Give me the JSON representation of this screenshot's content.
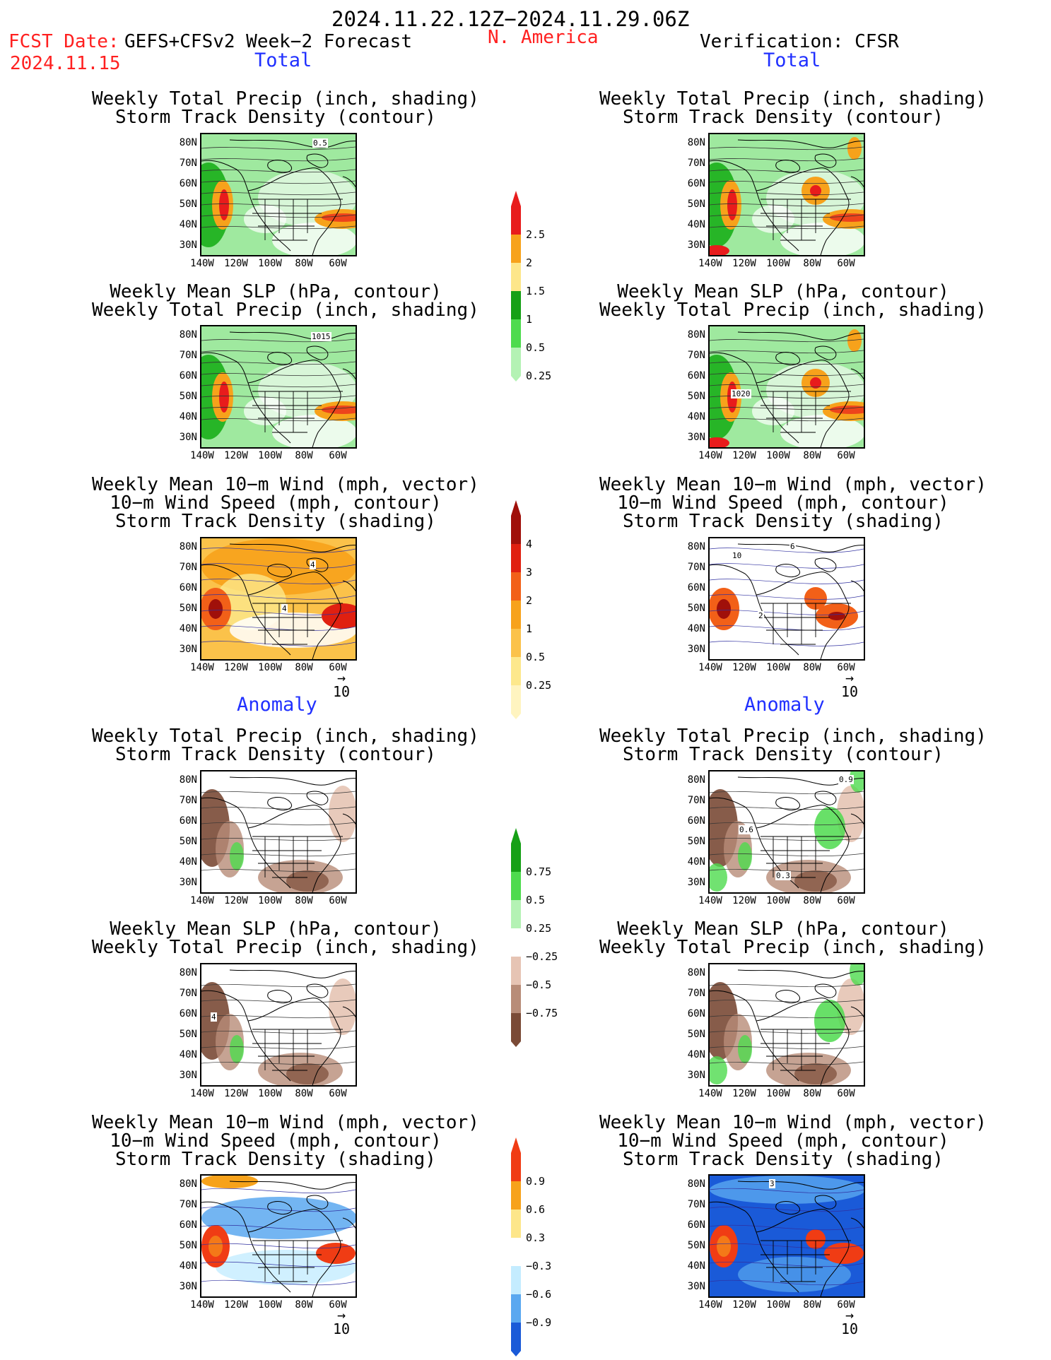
{
  "header": {
    "period": "2024.11.22.12Z−2024.11.29.06Z",
    "fcst_label": "FCST Date:",
    "fcst_model": "GEFS+CFSv2 Week−2 Forecast",
    "fcst_date": "2024.11.15",
    "region": "N. America",
    "verification": "Verification: CFSR"
  },
  "sections": {
    "total_left": "Total",
    "total_right": "Total",
    "anom_left": "Anomaly",
    "anom_right": "Anomaly"
  },
  "titles": {
    "precip_storm": [
      "Weekly Total Precip (inch, shading)",
      "Storm Track Density (contour)"
    ],
    "slp_precip": [
      "Weekly Mean SLP (hPa, contour)",
      "Weekly Total Precip (inch, shading)"
    ],
    "wind_storm": [
      "Weekly Mean 10−m Wind (mph, vector)",
      "10−m Wind Speed (mph, contour)",
      "Storm Track Density (shading)"
    ]
  },
  "axes": {
    "lat": [
      "80N",
      "70N",
      "60N",
      "50N",
      "40N",
      "30N"
    ],
    "lon": [
      "140W",
      "120W",
      "100W",
      "80W",
      "60W"
    ]
  },
  "contour_labels": {
    "p1_left": "0.5",
    "p2_left": "1015",
    "p2_right": "1020",
    "p3_left_a": "4",
    "p3_left_b": "4",
    "p3_right_a": "10",
    "p3_right_b": "6",
    "p3_right_c": "2",
    "p4_right_a": "0.9",
    "p4_right_b": "0.6",
    "p4_right_c": "0.3",
    "p5_left": "4",
    "p6_right": "3"
  },
  "vector_ref": "10",
  "colorbars": [
    {
      "name": "precip-total",
      "labels": [
        "2.5",
        "2",
        "1.5",
        "1",
        "0.5",
        "0.25"
      ],
      "colors": [
        "#e81c1c",
        "#f7a21b",
        "#fde68a",
        "#16a016",
        "#4edb4e",
        "#b4f2b4"
      ]
    },
    {
      "name": "storm-total",
      "labels": [
        "4",
        "3",
        "2",
        "1",
        "0.5",
        "0.25"
      ],
      "colors": [
        "#a0100a",
        "#e02010",
        "#f26018",
        "#f7a21b",
        "#fbc24a",
        "#fde88c",
        "#fff4c0"
      ]
    },
    {
      "name": "precip-anom",
      "labels": [
        "0.75",
        "0.5",
        "0.25",
        "−0.25",
        "−0.5",
        "−0.75"
      ],
      "colors": [
        "#16a016",
        "#4edb4e",
        "#b4f2b4",
        "#ffffff",
        "#e6c4b4",
        "#b88c78",
        "#7a4a36"
      ]
    },
    {
      "name": "storm-anom",
      "labels": [
        "0.9",
        "0.6",
        "0.3",
        "−0.3",
        "−0.6",
        "−0.9"
      ],
      "colors": [
        "#f03c14",
        "#f7a21b",
        "#fde68a",
        "#ffffff",
        "#c4ecff",
        "#5aa8f0",
        "#1a5ad8"
      ]
    }
  ]
}
